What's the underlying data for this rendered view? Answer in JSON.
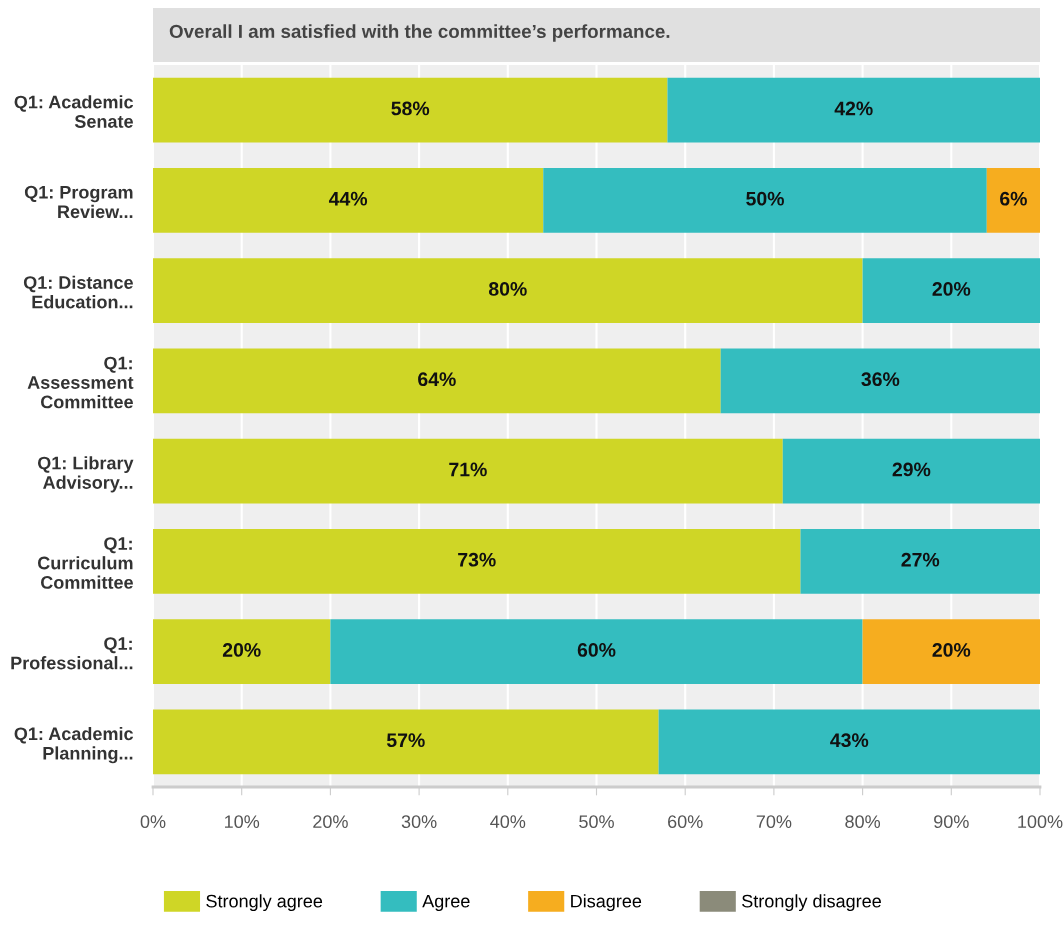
{
  "chart_data": {
    "type": "bar",
    "orientation": "horizontal",
    "stacked": true,
    "title": "Overall I am satisfied with the committee’s performance.",
    "categories": [
      "Q1: Academic\nSenate",
      "Q1: Program\nReview...",
      "Q1: Distance\nEducation...",
      "Q1:\nAssessment\nCommittee",
      "Q1: Library\nAdvisory...",
      "Q1:\nCurriculum\nCommittee",
      "Q1:\nProfessional...",
      "Q1: Academic\nPlanning..."
    ],
    "series": [
      {
        "name": "Strongly agree",
        "color": "#cfd626",
        "values": [
          58,
          44,
          80,
          64,
          71,
          73,
          20,
          57
        ],
        "value_labels": [
          "58%",
          "44%",
          "80%",
          "64%",
          "71%",
          "73%",
          "20%",
          "57%"
        ]
      },
      {
        "name": "Agree",
        "color": "#34bdbf",
        "values": [
          42,
          50,
          20,
          36,
          29,
          27,
          60,
          43
        ],
        "value_labels": [
          "42%",
          "50%",
          "20%",
          "36%",
          "29%",
          "27%",
          "60%",
          "43%"
        ]
      },
      {
        "name": "Disagree",
        "color": "#f6ad1f",
        "values": [
          null,
          6,
          null,
          null,
          null,
          null,
          20,
          null
        ],
        "value_labels": [
          null,
          "6%",
          null,
          null,
          null,
          null,
          "20%",
          null
        ]
      },
      {
        "name": "Strongly disagree",
        "color": "#8b8b7a",
        "values": [
          null,
          null,
          null,
          null,
          null,
          null,
          null,
          null
        ]
      }
    ],
    "xlim": [
      0,
      100
    ],
    "xticks": [
      {
        "value": 0,
        "label": "0%"
      },
      {
        "value": 10,
        "label": "10%"
      },
      {
        "value": 20,
        "label": "20%"
      },
      {
        "value": 30,
        "label": "30%"
      },
      {
        "value": 40,
        "label": "40%"
      },
      {
        "value": 50,
        "label": "50%"
      },
      {
        "value": 60,
        "label": "60%"
      },
      {
        "value": 70,
        "label": "70%"
      },
      {
        "value": 80,
        "label": "80%"
      },
      {
        "value": 90,
        "label": "90%"
      },
      {
        "value": 100,
        "label": "100%"
      }
    ],
    "grid": "x",
    "legend": "bottom"
  }
}
